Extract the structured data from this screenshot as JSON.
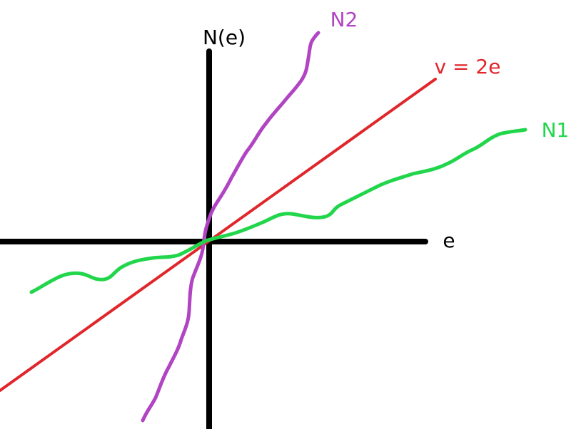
{
  "axes": {
    "y_label": "N(e)",
    "x_label": "e",
    "color": "#000000"
  },
  "curves": {
    "n2": {
      "label": "N2",
      "color": "#b144c3"
    },
    "reference": {
      "label": "v = 2e",
      "color": "#e0262b"
    },
    "n1": {
      "label": "N1",
      "color": "#22d64c"
    }
  }
}
